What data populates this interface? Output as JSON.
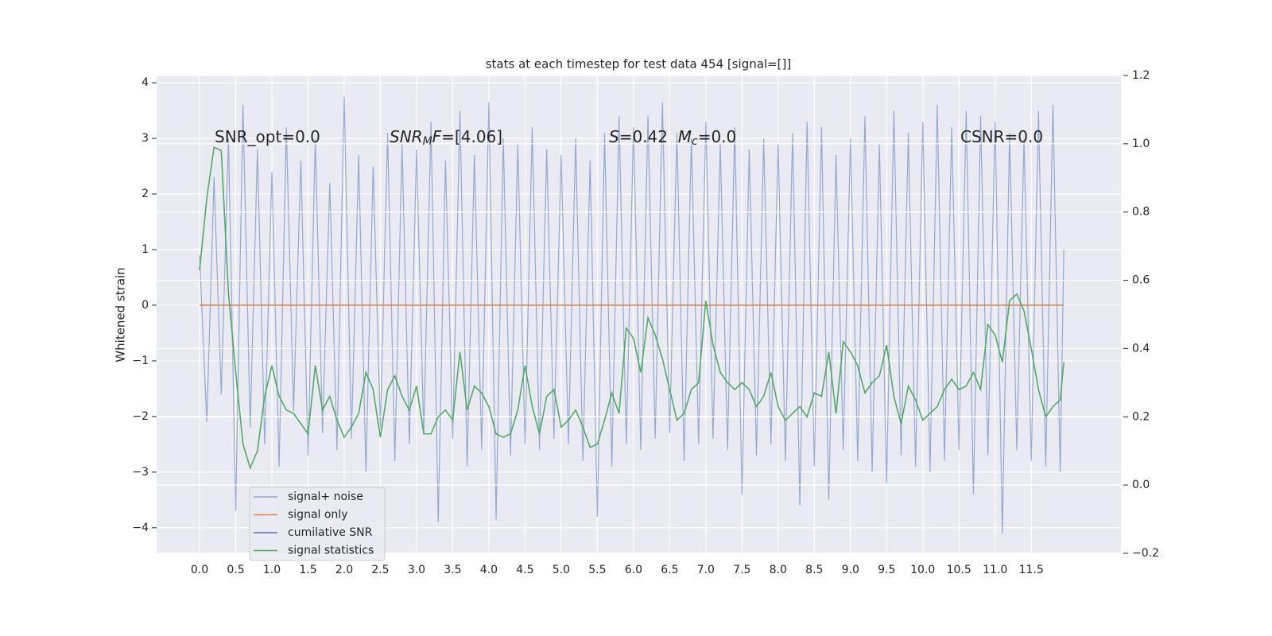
{
  "chart_data": {
    "type": "line",
    "title": "stats at each timestep for test data 454 [signal=[]]",
    "y_label": "Whitened strain",
    "x": [
      0,
      0.1,
      0.2,
      0.3,
      0.4,
      0.5,
      0.6,
      0.7,
      0.8,
      0.9,
      1.0,
      1.1,
      1.2,
      1.3,
      1.4,
      1.5,
      1.6,
      1.7,
      1.8,
      1.9,
      2.0,
      2.1,
      2.2,
      2.3,
      2.4,
      2.5,
      2.6,
      2.7,
      2.8,
      2.9,
      3.0,
      3.1,
      3.2,
      3.3,
      3.4,
      3.5,
      3.6,
      3.7,
      3.8,
      3.9,
      4.0,
      4.1,
      4.2,
      4.3,
      4.4,
      4.5,
      4.6,
      4.7,
      4.8,
      4.9,
      5.0,
      5.1,
      5.2,
      5.3,
      5.4,
      5.5,
      5.6,
      5.7,
      5.8,
      5.9,
      6.0,
      6.1,
      6.2,
      6.3,
      6.4,
      6.5,
      6.6,
      6.7,
      6.8,
      6.9,
      7.0,
      7.1,
      7.2,
      7.3,
      7.4,
      7.5,
      7.6,
      7.7,
      7.8,
      7.9,
      8.0,
      8.1,
      8.2,
      8.3,
      8.4,
      8.5,
      8.6,
      8.7,
      8.8,
      8.9,
      9.0,
      9.1,
      9.2,
      9.3,
      9.4,
      9.5,
      9.6,
      9.7,
      9.8,
      9.9,
      10.0,
      10.1,
      10.2,
      10.3,
      10.4,
      10.5,
      10.6,
      10.7,
      10.8,
      10.9,
      11.0,
      11.1,
      11.2,
      11.3,
      11.4,
      11.5,
      11.6,
      11.7,
      11.8,
      11.9,
      11.95
    ],
    "series": [
      {
        "name": "signal+ noise",
        "color": "#4c72b0",
        "values": [
          0.9,
          -2.1,
          2.3,
          -1.6,
          3.0,
          -3.7,
          3.6,
          -2.2,
          2.8,
          -2.5,
          2.4,
          -2.9,
          3.2,
          -1.9,
          2.6,
          -2.7,
          3.0,
          -2.3,
          2.2,
          -2.6,
          3.75,
          -2.4,
          2.7,
          -3.0,
          2.5,
          -2.2,
          3.1,
          -2.8,
          2.9,
          -2.5,
          2.8,
          -2.3,
          3.3,
          -3.9,
          2.6,
          -2.4,
          3.5,
          -2.9,
          2.7,
          -2.6,
          3.65,
          -3.85,
          3.0,
          -2.7,
          2.9,
          -2.5,
          3.2,
          -2.6,
          2.8,
          -2.4,
          2.7,
          -2.5,
          3.0,
          -2.8,
          2.6,
          -3.8,
          3.1,
          -2.9,
          3.4,
          -2.5,
          3.2,
          -2.6,
          3.4,
          -2.4,
          3.65,
          -2.3,
          3.1,
          -2.8,
          3.0,
          -2.5,
          3.3,
          -2.4,
          2.9,
          -2.6,
          3.2,
          -3.4,
          2.8,
          -2.7,
          3.0,
          -2.5,
          2.9,
          -2.8,
          3.1,
          -3.6,
          3.3,
          -2.9,
          3.2,
          -3.5,
          2.7,
          -2.6,
          3.0,
          -2.8,
          3.4,
          -3.0,
          2.9,
          -3.2,
          3.5,
          -2.7,
          3.1,
          -2.9,
          3.3,
          -3.0,
          3.6,
          -2.8,
          3.2,
          -2.6,
          3.5,
          -3.4,
          3.4,
          -2.7,
          3.3,
          -4.1,
          3.1,
          -2.6,
          3.0,
          -2.8,
          3.5,
          -2.9,
          3.6,
          -3.0,
          1.0
        ]
      },
      {
        "name": "signal only",
        "color": "#dd8452",
        "values": [
          0,
          0,
          0,
          0,
          0,
          0,
          0,
          0,
          0,
          0,
          0,
          0,
          0,
          0,
          0,
          0,
          0,
          0,
          0,
          0,
          0,
          0,
          0,
          0,
          0,
          0,
          0,
          0,
          0,
          0,
          0,
          0,
          0,
          0,
          0,
          0,
          0,
          0,
          0,
          0,
          0,
          0,
          0,
          0,
          0,
          0,
          0,
          0,
          0,
          0,
          0,
          0,
          0,
          0,
          0,
          0,
          0,
          0,
          0,
          0,
          0,
          0,
          0,
          0,
          0,
          0,
          0,
          0,
          0,
          0,
          0,
          0,
          0,
          0,
          0,
          0,
          0,
          0,
          0,
          0,
          0,
          0,
          0,
          0,
          0,
          0,
          0,
          0,
          0,
          0,
          0,
          0,
          0,
          0,
          0,
          0,
          0,
          0,
          0,
          0,
          0,
          0,
          0,
          0,
          0,
          0,
          0,
          0,
          0,
          0,
          0,
          0,
          0,
          0,
          0,
          0,
          0,
          0,
          0,
          0,
          0
        ]
      },
      {
        "name": "cumilative SNR",
        "color": "#4c72b0"
      },
      {
        "name": "signal statistics",
        "color": "#55a868",
        "axis": "y2",
        "values": [
          0.63,
          0.84,
          0.99,
          0.98,
          0.56,
          0.33,
          0.12,
          0.05,
          0.1,
          0.26,
          0.35,
          0.26,
          0.22,
          0.21,
          0.18,
          0.15,
          0.35,
          0.22,
          0.26,
          0.19,
          0.14,
          0.17,
          0.21,
          0.33,
          0.28,
          0.14,
          0.28,
          0.32,
          0.26,
          0.22,
          0.29,
          0.15,
          0.15,
          0.2,
          0.22,
          0.19,
          0.39,
          0.22,
          0.29,
          0.27,
          0.23,
          0.15,
          0.14,
          0.15,
          0.22,
          0.35,
          0.23,
          0.15,
          0.26,
          0.28,
          0.17,
          0.19,
          0.22,
          0.17,
          0.11,
          0.12,
          0.19,
          0.27,
          0.21,
          0.46,
          0.43,
          0.33,
          0.49,
          0.44,
          0.37,
          0.28,
          0.19,
          0.21,
          0.28,
          0.3,
          0.54,
          0.41,
          0.33,
          0.3,
          0.28,
          0.3,
          0.28,
          0.23,
          0.26,
          0.33,
          0.23,
          0.19,
          0.21,
          0.23,
          0.2,
          0.27,
          0.26,
          0.39,
          0.21,
          0.42,
          0.39,
          0.35,
          0.27,
          0.3,
          0.32,
          0.41,
          0.26,
          0.18,
          0.29,
          0.25,
          0.19,
          0.21,
          0.23,
          0.28,
          0.31,
          0.28,
          0.29,
          0.33,
          0.28,
          0.47,
          0.44,
          0.36,
          0.54,
          0.56,
          0.51,
          0.4,
          0.28,
          0.2,
          0.23,
          0.25,
          0.36
        ]
      }
    ],
    "xlim": [
      -0.594,
      12.74
    ],
    "xticks": [
      {
        "value": 0,
        "label": "0.0"
      },
      0.5,
      {
        "value": 1,
        "label": "1.0"
      },
      1.5,
      {
        "value": 2,
        "label": "2.0"
      },
      2.5,
      {
        "value": 3,
        "label": "3.0"
      },
      3.5,
      {
        "value": 4,
        "label": "4.0"
      },
      4.5,
      {
        "value": 5,
        "label": "5.0"
      },
      5.5,
      {
        "value": 6,
        "label": "6.0"
      },
      6.5,
      {
        "value": 7,
        "label": "7.0"
      },
      7.5,
      {
        "value": 8,
        "label": "8.0"
      },
      8.5,
      {
        "value": 9,
        "label": "9.0"
      },
      9.5,
      {
        "value": 10,
        "label": "10.0"
      },
      10.5,
      {
        "value": 11,
        "label": "11.0"
      },
      11.5
    ],
    "ylim": [
      -4.46,
      4.13
    ],
    "yticks": [
      {
        "value": -4,
        "label": "−4"
      },
      {
        "value": -3,
        "label": "−3"
      },
      {
        "value": -2,
        "label": "−2"
      },
      {
        "value": -1,
        "label": "−1"
      },
      0,
      1,
      2,
      3,
      4
    ],
    "y2lim": [
      -0.2,
      1.2
    ],
    "y2ticks": [
      {
        "value": -0.2,
        "label": "−0.2"
      },
      {
        "value": 0,
        "label": "0.0"
      },
      0.2,
      0.4,
      0.6,
      {
        "value": 0.8,
        "label": "0.8"
      },
      {
        "value": 1,
        "label": "1.0"
      },
      1.2
    ],
    "grid": true,
    "legend": "lower left",
    "annotations": [
      [
        {
          "text": "SNR_opt=0.0",
          "style": "normal"
        }
      ],
      [
        {
          "text": "SNR",
          "style": "italic"
        },
        {
          "text": "M",
          "style": "sub"
        },
        {
          "text": "F",
          "style": "italic"
        },
        {
          "text": "=[4.06]",
          "style": "normal"
        }
      ],
      [
        {
          "text": "S",
          "style": "italic"
        },
        {
          "text": "=0.42  ",
          "style": "normal"
        },
        {
          "text": "M",
          "style": "italic"
        },
        {
          "text": "c",
          "style": "sub"
        },
        {
          "text": "=0.0",
          "style": "normal"
        }
      ],
      [
        {
          "text": "CSNR=0.0",
          "style": "normal"
        }
      ]
    ]
  }
}
